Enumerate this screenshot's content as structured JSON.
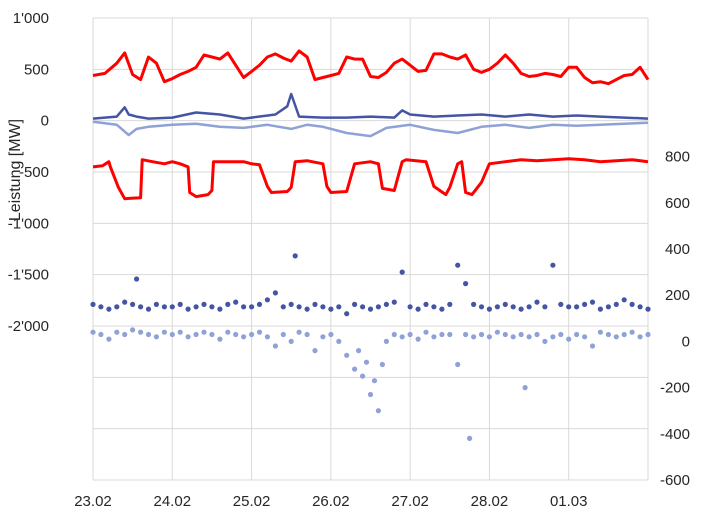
{
  "chart_data": {
    "type": "line",
    "title": "",
    "ylabel": "Leistung  [MW]",
    "x_ticks": [
      "23.02",
      "24.02",
      "25.02",
      "26.02",
      "27.02",
      "28.02",
      "01.03"
    ],
    "x_range_days": [
      0,
      7
    ],
    "left_axis": {
      "ticks": [
        "1'000",
        "500",
        "0",
        "-500",
        "-1'000",
        "-1'500",
        "-2'000"
      ],
      "ylim": [
        -3500,
        1000
      ]
    },
    "right_axis": {
      "ticks": [
        "800",
        "600",
        "400",
        "200",
        "0",
        "-200",
        "-400",
        "-600"
      ],
      "ylim": [
        -600,
        1400
      ]
    },
    "grid": true,
    "legend": "none",
    "colors": {
      "red": "#ff0000",
      "dark_blue": "#4455a3",
      "light_blue": "#8fa2d6"
    },
    "series": [
      {
        "axis": "left",
        "style": "line",
        "color": "red",
        "x": [
          0,
          0.15,
          0.3,
          0.4,
          0.5,
          0.6,
          0.7,
          0.8,
          0.9,
          1.0,
          1.1,
          1.2,
          1.3,
          1.4,
          1.5,
          1.6,
          1.7,
          1.8,
          1.9,
          2.0,
          2.1,
          2.2,
          2.3,
          2.4,
          2.5,
          2.6,
          2.7,
          2.8,
          2.9,
          3.0,
          3.1,
          3.2,
          3.3,
          3.4,
          3.5,
          3.6,
          3.7,
          3.8,
          3.9,
          4.0,
          4.1,
          4.2,
          4.3,
          4.4,
          4.5,
          4.6,
          4.7,
          4.8,
          4.9,
          5.0,
          5.1,
          5.2,
          5.3,
          5.4,
          5.5,
          5.6,
          5.7,
          5.8,
          5.9,
          6.0,
          6.1,
          6.2,
          6.3,
          6.4,
          6.5,
          6.6,
          6.7,
          6.8,
          6.9,
          7.0
        ],
        "y": [
          440,
          460,
          560,
          660,
          450,
          400,
          620,
          560,
          380,
          410,
          450,
          480,
          520,
          640,
          620,
          600,
          660,
          540,
          420,
          480,
          540,
          620,
          650,
          610,
          580,
          680,
          620,
          400,
          420,
          440,
          460,
          620,
          600,
          600,
          430,
          420,
          470,
          560,
          600,
          540,
          480,
          490,
          650,
          650,
          620,
          600,
          640,
          500,
          470,
          500,
          560,
          640,
          560,
          460,
          430,
          440,
          460,
          450,
          430,
          520,
          520,
          420,
          370,
          380,
          360,
          400,
          440,
          450,
          520,
          400
        ]
      },
      {
        "axis": "left",
        "style": "line",
        "color": "red",
        "x": [
          0,
          0.12,
          0.2,
          0.22,
          0.32,
          0.4,
          0.6,
          0.62,
          0.75,
          0.9,
          1.0,
          1.1,
          1.2,
          1.22,
          1.3,
          1.45,
          1.5,
          1.52,
          1.75,
          1.9,
          2.0,
          2.1,
          2.2,
          2.25,
          2.45,
          2.5,
          2.55,
          2.7,
          2.9,
          2.95,
          3.0,
          3.2,
          3.3,
          3.5,
          3.6,
          3.65,
          3.8,
          3.9,
          3.95,
          4.2,
          4.3,
          4.45,
          4.5,
          4.6,
          4.65,
          4.7,
          4.78,
          4.9,
          5.0,
          5.2,
          5.4,
          5.6,
          5.8,
          6.0,
          6.2,
          6.4,
          6.6,
          6.8,
          7.0
        ],
        "y": [
          -450,
          -440,
          -400,
          -450,
          -650,
          -760,
          -750,
          -380,
          -400,
          -420,
          -400,
          -420,
          -450,
          -700,
          -740,
          -720,
          -680,
          -400,
          -400,
          -400,
          -420,
          -430,
          -640,
          -700,
          -690,
          -650,
          -400,
          -390,
          -420,
          -640,
          -700,
          -690,
          -420,
          -400,
          -420,
          -660,
          -680,
          -400,
          -380,
          -400,
          -640,
          -720,
          -650,
          -420,
          -400,
          -700,
          -720,
          -600,
          -420,
          -400,
          -380,
          -390,
          -380,
          -370,
          -380,
          -400,
          -390,
          -380,
          -400
        ]
      },
      {
        "axis": "left",
        "style": "line",
        "color": "dark_blue",
        "x": [
          0,
          0.3,
          0.4,
          0.45,
          0.55,
          0.7,
          1.0,
          1.3,
          1.6,
          1.9,
          2.0,
          2.3,
          2.45,
          2.5,
          2.6,
          2.9,
          3.2,
          3.5,
          3.8,
          3.9,
          4.0,
          4.3,
          4.6,
          4.9,
          5.2,
          5.5,
          5.8,
          6.1,
          6.4,
          6.7,
          7.0
        ],
        "y": [
          20,
          40,
          130,
          60,
          40,
          20,
          30,
          80,
          60,
          20,
          30,
          60,
          140,
          260,
          40,
          30,
          30,
          40,
          30,
          100,
          60,
          40,
          50,
          60,
          40,
          60,
          40,
          50,
          40,
          30,
          20
        ]
      },
      {
        "axis": "left",
        "style": "line",
        "color": "light_blue",
        "x": [
          0,
          0.3,
          0.45,
          0.55,
          0.7,
          1.0,
          1.3,
          1.6,
          1.9,
          2.2,
          2.5,
          2.7,
          2.9,
          3.2,
          3.5,
          3.7,
          4.0,
          4.3,
          4.6,
          4.9,
          5.2,
          5.5,
          5.8,
          6.1,
          6.4,
          6.7,
          7.0
        ],
        "y": [
          -10,
          -40,
          -140,
          -80,
          -60,
          -40,
          -30,
          -60,
          -70,
          -40,
          -80,
          -40,
          -60,
          -120,
          -150,
          -70,
          -40,
          -90,
          -120,
          -60,
          -40,
          -70,
          -40,
          -50,
          -40,
          -30,
          -20
        ]
      },
      {
        "axis": "right",
        "style": "scatter",
        "color": "dark_blue",
        "x": [
          0,
          0.1,
          0.2,
          0.3,
          0.4,
          0.5,
          0.55,
          0.6,
          0.7,
          0.8,
          0.9,
          1.0,
          1.1,
          1.2,
          1.3,
          1.4,
          1.5,
          1.6,
          1.7,
          1.8,
          1.9,
          2.0,
          2.1,
          2.2,
          2.3,
          2.4,
          2.5,
          2.55,
          2.6,
          2.7,
          2.8,
          2.9,
          3.0,
          3.1,
          3.2,
          3.3,
          3.4,
          3.5,
          3.6,
          3.7,
          3.8,
          3.9,
          4.0,
          4.1,
          4.2,
          4.3,
          4.4,
          4.5,
          4.6,
          4.7,
          4.8,
          4.9,
          5.0,
          5.1,
          5.2,
          5.3,
          5.4,
          5.5,
          5.6,
          5.7,
          5.8,
          5.9,
          6.0,
          6.1,
          6.2,
          6.3,
          6.4,
          6.5,
          6.6,
          6.7,
          6.8,
          6.9,
          7.0
        ],
        "y": [
          160,
          150,
          140,
          150,
          170,
          160,
          270,
          150,
          140,
          160,
          150,
          150,
          160,
          140,
          150,
          160,
          150,
          140,
          160,
          170,
          150,
          150,
          160,
          180,
          210,
          150,
          160,
          370,
          150,
          140,
          160,
          150,
          140,
          150,
          120,
          160,
          150,
          140,
          150,
          160,
          170,
          300,
          150,
          140,
          160,
          150,
          140,
          160,
          330,
          250,
          160,
          150,
          140,
          150,
          160,
          150,
          140,
          150,
          170,
          150,
          330,
          160,
          150,
          150,
          160,
          170,
          140,
          150,
          160,
          180,
          160,
          150,
          140
        ]
      },
      {
        "axis": "right",
        "style": "scatter",
        "color": "light_blue",
        "x": [
          0,
          0.1,
          0.2,
          0.3,
          0.4,
          0.5,
          0.6,
          0.7,
          0.8,
          0.9,
          1.0,
          1.1,
          1.2,
          1.3,
          1.4,
          1.5,
          1.6,
          1.7,
          1.8,
          1.9,
          2.0,
          2.1,
          2.2,
          2.3,
          2.4,
          2.5,
          2.6,
          2.7,
          2.8,
          2.9,
          3.0,
          3.1,
          3.2,
          3.3,
          3.35,
          3.4,
          3.45,
          3.5,
          3.55,
          3.6,
          3.65,
          3.7,
          3.8,
          3.9,
          4.0,
          4.1,
          4.2,
          4.3,
          4.4,
          4.5,
          4.6,
          4.7,
          4.75,
          4.8,
          4.9,
          5.0,
          5.1,
          5.2,
          5.3,
          5.4,
          5.45,
          5.5,
          5.6,
          5.7,
          5.8,
          5.9,
          6.0,
          6.1,
          6.2,
          6.3,
          6.4,
          6.5,
          6.6,
          6.7,
          6.8,
          6.9,
          7.0
        ],
        "y": [
          40,
          30,
          10,
          40,
          30,
          50,
          40,
          30,
          20,
          40,
          30,
          40,
          20,
          30,
          40,
          30,
          10,
          40,
          30,
          20,
          30,
          40,
          20,
          -20,
          30,
          0,
          40,
          30,
          -40,
          20,
          30,
          0,
          -60,
          -120,
          -40,
          -150,
          -90,
          -230,
          -170,
          -300,
          -100,
          0,
          30,
          20,
          30,
          10,
          40,
          20,
          30,
          30,
          -100,
          30,
          -420,
          20,
          30,
          20,
          40,
          30,
          20,
          30,
          -200,
          20,
          30,
          0,
          20,
          30,
          10,
          30,
          20,
          -20,
          40,
          30,
          20,
          30,
          40,
          20,
          30
        ]
      }
    ]
  }
}
